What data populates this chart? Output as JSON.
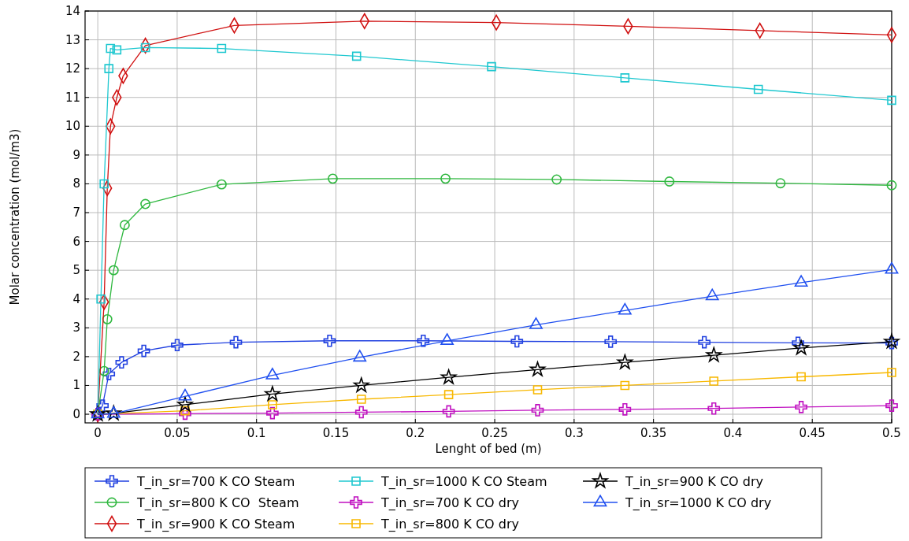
{
  "chart_data": {
    "type": "line",
    "xlabel": "Lenght of bed (m)",
    "ylabel": "Molar concentration (mol/m3)",
    "xlim": [
      -0.008,
      0.5
    ],
    "ylim": [
      -0.3,
      14
    ],
    "xticks": [
      0,
      0.05,
      0.1,
      0.15,
      0.2,
      0.25,
      0.3,
      0.35,
      0.4,
      0.45,
      0.5
    ],
    "yticks": [
      0,
      1,
      2,
      3,
      4,
      5,
      6,
      7,
      8,
      9,
      10,
      11,
      12,
      13,
      14
    ],
    "grid": true,
    "legend": "bottom",
    "series": [
      {
        "name": "T_in_sr=700 K CO Steam",
        "color": "#2040e0",
        "marker": "cross",
        "x": [
          0,
          0.003,
          0.007,
          0.015,
          0.029,
          0.05,
          0.087,
          0.146,
          0.205,
          0.264,
          0.323,
          0.382,
          0.441,
          0.5
        ],
        "values": [
          0,
          0.3,
          1.4,
          1.8,
          2.2,
          2.4,
          2.5,
          2.55,
          2.55,
          2.53,
          2.52,
          2.5,
          2.48,
          2.47
        ]
      },
      {
        "name": "T_in_sr=800 K CO  Steam",
        "color": "#30b840",
        "marker": "circle",
        "x": [
          0,
          0.004,
          0.006,
          0.01,
          0.017,
          0.03,
          0.078,
          0.148,
          0.219,
          0.289,
          0.36,
          0.43,
          0.5
        ],
        "values": [
          0,
          1.5,
          3.3,
          5.0,
          6.57,
          7.3,
          7.98,
          8.18,
          8.18,
          8.15,
          8.08,
          8.02,
          7.95
        ]
      },
      {
        "name": "T_in_sr=900 K CO Steam",
        "color": "#d01010",
        "marker": "diamond",
        "x": [
          0,
          0.004,
          0.006,
          0.008,
          0.012,
          0.016,
          0.03,
          0.086,
          0.168,
          0.251,
          0.334,
          0.417,
          0.5
        ],
        "values": [
          0,
          3.9,
          7.85,
          10,
          11,
          11.75,
          12.8,
          13.5,
          13.65,
          13.6,
          13.47,
          13.32,
          13.17
        ]
      },
      {
        "name": "T_in_sr=1000 K CO Steam",
        "color": "#20c8d0",
        "marker": "square",
        "x": [
          0,
          0.002,
          0.004,
          0.007,
          0.008,
          0.012,
          0.03,
          0.078,
          0.163,
          0.248,
          0.332,
          0.416,
          0.5
        ],
        "values": [
          0,
          4,
          8,
          12,
          12.7,
          12.65,
          12.73,
          12.7,
          12.43,
          12.07,
          11.68,
          11.28,
          10.9
        ]
      },
      {
        "name": "T_in_sr=700 K CO dry",
        "color": "#c010c0",
        "marker": "cross",
        "x": [
          0,
          0.055,
          0.11,
          0.166,
          0.221,
          0.277,
          0.332,
          0.388,
          0.443,
          0.5
        ],
        "values": [
          0,
          0.02,
          0.04,
          0.07,
          0.1,
          0.14,
          0.17,
          0.2,
          0.25,
          0.3
        ]
      },
      {
        "name": "T_in_sr=800 K CO dry",
        "color": "#f8b800",
        "marker": "square",
        "x": [
          0,
          0.055,
          0.11,
          0.166,
          0.221,
          0.277,
          0.332,
          0.388,
          0.443,
          0.5
        ],
        "values": [
          0,
          0.12,
          0.33,
          0.52,
          0.68,
          0.85,
          1.0,
          1.15,
          1.3,
          1.45
        ]
      },
      {
        "name": "T_in_sr=900 K CO dry",
        "color": "#000000",
        "marker": "star",
        "x": [
          0,
          0.01,
          0.055,
          0.11,
          0.166,
          0.221,
          0.277,
          0.332,
          0.388,
          0.443,
          0.5
        ],
        "values": [
          0,
          0.03,
          0.33,
          0.7,
          1.0,
          1.28,
          1.55,
          1.8,
          2.05,
          2.3,
          2.52
        ]
      },
      {
        "name": "T_in_sr=1000 K CO dry",
        "color": "#2050f0",
        "marker": "triangle",
        "x": [
          0,
          0.01,
          0.055,
          0.11,
          0.165,
          0.22,
          0.276,
          0.332,
          0.387,
          0.443,
          0.5
        ],
        "values": [
          0,
          0.02,
          0.62,
          1.35,
          1.97,
          2.55,
          3.1,
          3.6,
          4.1,
          4.57,
          5.02
        ]
      }
    ]
  }
}
